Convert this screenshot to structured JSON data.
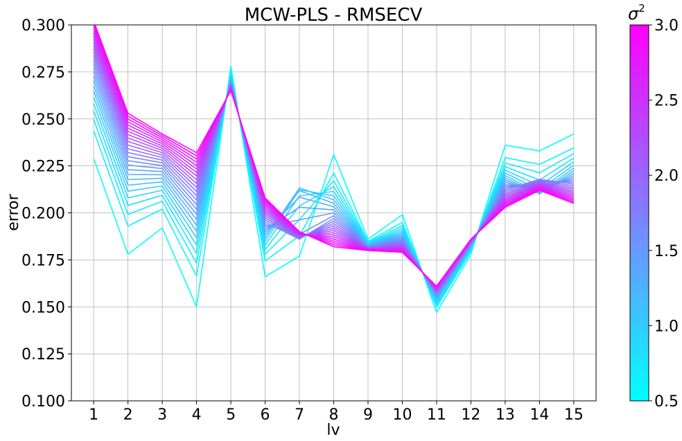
{
  "chart_data": {
    "type": "line",
    "title": "MCW-PLS - RMSECV",
    "xlabel": "lv",
    "ylabel": "error",
    "x": [
      1,
      2,
      3,
      4,
      5,
      6,
      7,
      8,
      9,
      10,
      11,
      12,
      13,
      14,
      15
    ],
    "xticks": [
      "1",
      "2",
      "3",
      "4",
      "5",
      "6",
      "7",
      "8",
      "9",
      "10",
      "11",
      "12",
      "13",
      "14",
      "15"
    ],
    "xlim": [
      0.35,
      15.65
    ],
    "ylim": [
      0.1,
      0.3
    ],
    "yticks": [
      "0.100",
      "0.125",
      "0.150",
      "0.175",
      "0.200",
      "0.225",
      "0.250",
      "0.275",
      "0.300"
    ],
    "grid": true,
    "series_count": 26,
    "colormap": "cool",
    "color_low": "#00ffff",
    "color_high": "#ff00ff",
    "sigma2_range": [
      0.5,
      3.0
    ],
    "series_low": [
      0.229,
      0.178,
      0.192,
      0.15,
      0.278,
      0.166,
      0.177,
      0.231,
      0.186,
      0.199,
      0.147,
      0.178,
      0.236,
      0.233,
      0.242
    ],
    "series_high": [
      0.302,
      0.253,
      0.242,
      0.232,
      0.265,
      0.208,
      0.19,
      0.182,
      0.18,
      0.179,
      0.161,
      0.186,
      0.203,
      0.212,
      0.205
    ],
    "colorbar": {
      "label": "σ²",
      "ticks": [
        "0.5",
        "1.0",
        "1.5",
        "2.0",
        "2.5",
        "3.0"
      ],
      "range": [
        0.5,
        3.0
      ]
    }
  }
}
